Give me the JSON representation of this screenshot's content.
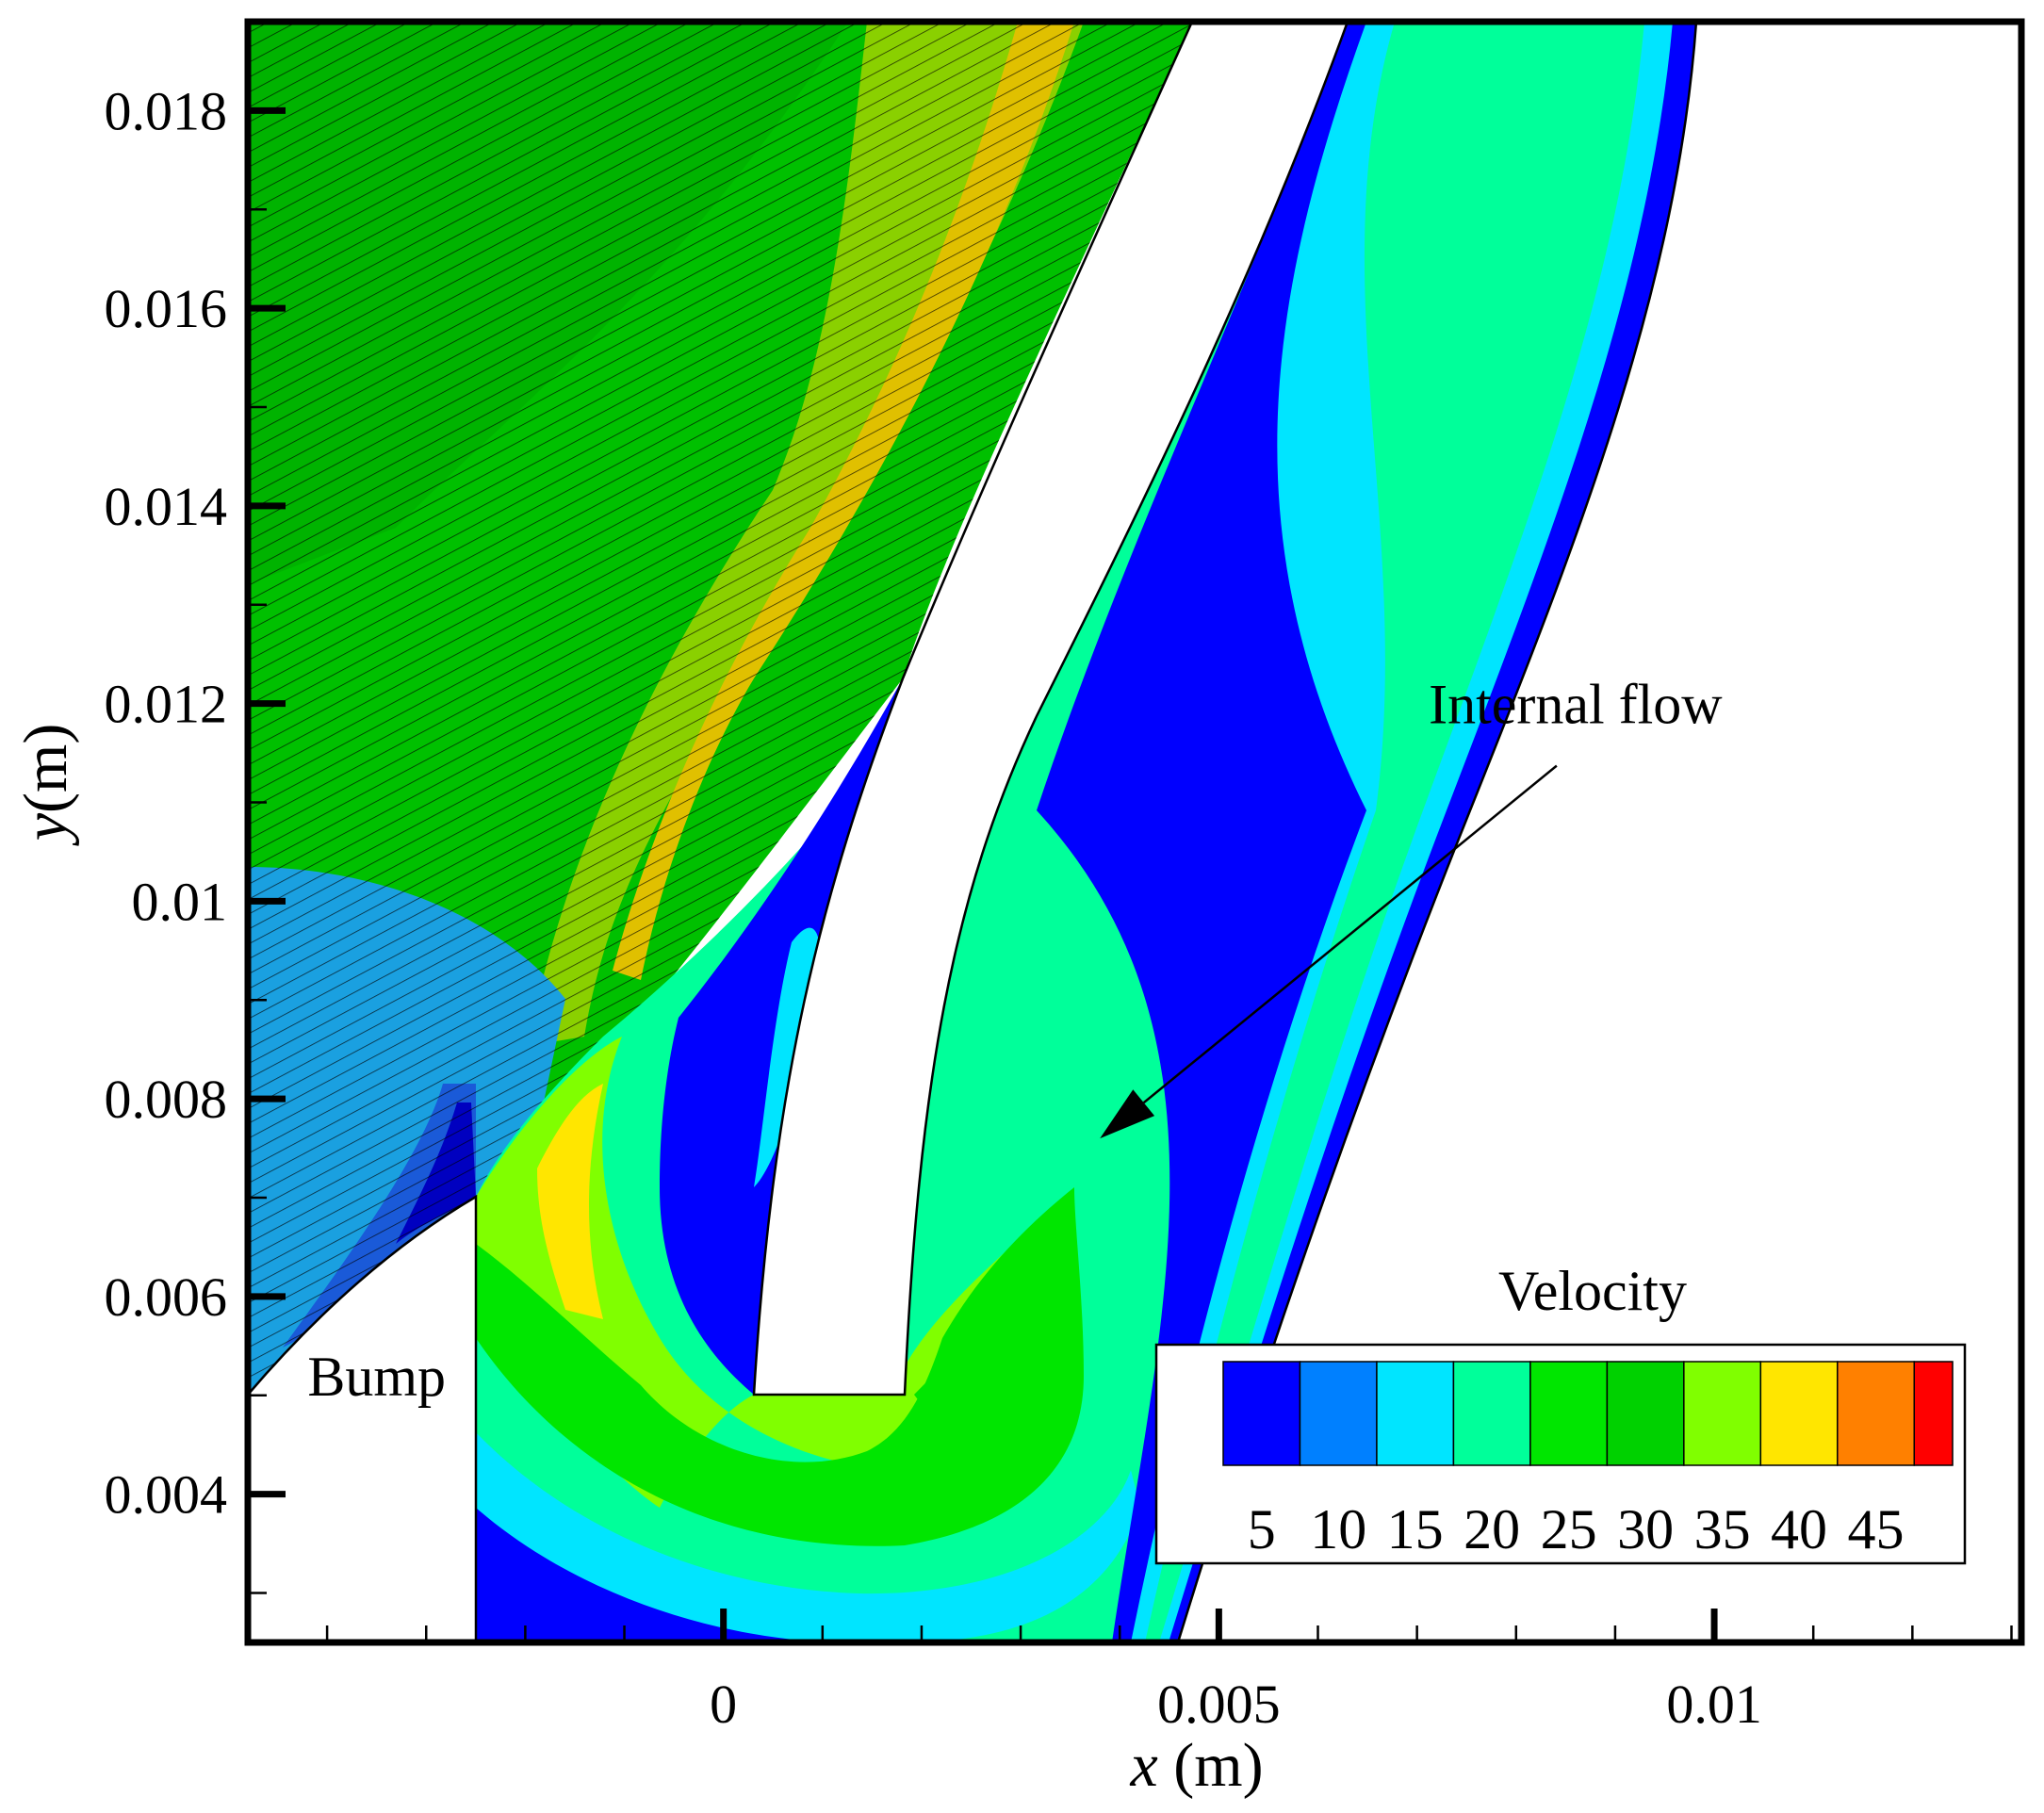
{
  "chart_data": {
    "type": "heatmap",
    "title": "",
    "xlabel": {
      "var": "x",
      "unit": " (m)"
    },
    "ylabel": {
      "var": "y",
      "unit": "(m)"
    },
    "xlim": [
      -0.0048,
      0.0131
    ],
    "ylim": [
      0.0025,
      0.0189
    ],
    "x_ticks": [
      {
        "value": 0,
        "label": "0"
      },
      {
        "value": 0.005,
        "label": "0.005"
      },
      {
        "value": 0.01,
        "label": "0.01"
      }
    ],
    "y_ticks": [
      {
        "value": 0.004,
        "label": "0.004"
      },
      {
        "value": 0.006,
        "label": "0.006"
      },
      {
        "value": 0.008,
        "label": "0.008"
      },
      {
        "value": 0.01,
        "label": "0.01"
      },
      {
        "value": 0.012,
        "label": "0.012"
      },
      {
        "value": 0.014,
        "label": "0.014"
      },
      {
        "value": 0.016,
        "label": "0.016"
      },
      {
        "value": 0.018,
        "label": "0.018"
      }
    ],
    "minor_x_step": 0.001,
    "minor_y_step": 0.001,
    "grid": false,
    "legend": {
      "title": "Velocity",
      "position": "bottom-right",
      "levels": [
        0,
        5,
        10,
        15,
        20,
        25,
        30,
        35,
        40,
        45,
        50
      ],
      "tick_labels": [
        "5",
        "10",
        "15",
        "20",
        "25",
        "30",
        "35",
        "40",
        "45"
      ],
      "colors": [
        "#0000ff",
        "#0080ff",
        "#00e5ff",
        "#00ff9a",
        "#00e600",
        "#00d100",
        "#80ff00",
        "#ffe600",
        "#ff8000",
        "#ff0000"
      ]
    },
    "annotations": [
      {
        "text": "Internal flow",
        "x": 0.0086,
        "y": 0.0118,
        "arrow_to": [
          0.0038,
          0.0076
        ]
      },
      {
        "text": "Bump",
        "x": -0.0035,
        "y": 0.005
      }
    ],
    "regions": {
      "bump": {
        "x_range": [
          -0.0048,
          -0.0025
        ],
        "top_y": 0.007
      },
      "solid_wall": {
        "tip_x": [
          0.0004,
          0.0019
        ],
        "tip_y": 0.005,
        "x_at_top": [
          0.0064,
          0.0095
        ]
      },
      "internal_channel": {
        "inner_x_at_top": [
          0.0086,
          0.009
        ],
        "outer_x_at_top": [
          0.0126,
          0.0131
        ]
      }
    }
  }
}
